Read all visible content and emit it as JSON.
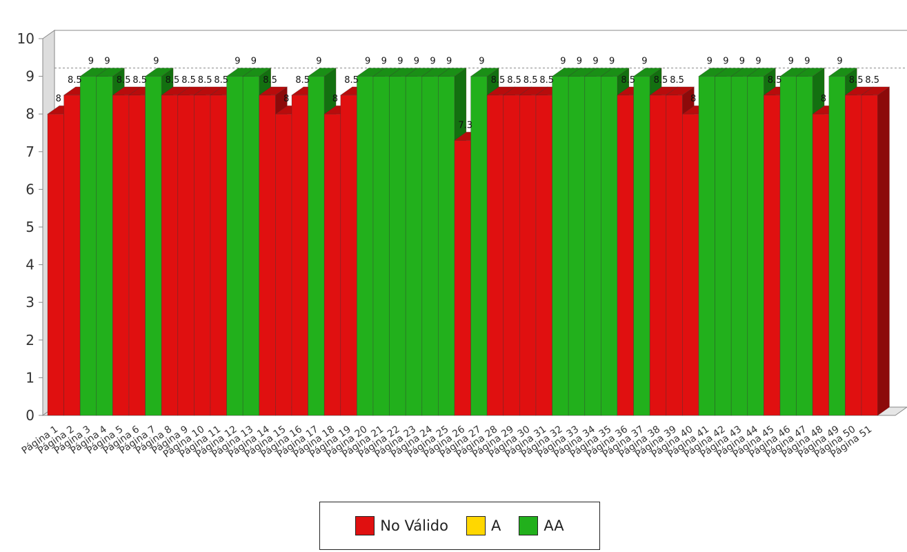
{
  "chart_data": {
    "type": "bar",
    "title": "",
    "xlabel": "",
    "ylabel": "",
    "ylim": [
      0,
      10
    ],
    "yticks": [
      0,
      1,
      2,
      3,
      4,
      5,
      6,
      7,
      8,
      9,
      10
    ],
    "three_d": true,
    "grid": "dashed lines at 9 and 10",
    "legend_position": "bottom",
    "categories": [
      "Página 1",
      "Página 2",
      "Página 3",
      "Página 4",
      "Página 5",
      "Página 6",
      "Página 7",
      "Página 8",
      "Página 9",
      "Página 10",
      "Página 11",
      "Página 12",
      "Página 13",
      "Página 14",
      "Página 15",
      "Página 16",
      "Página 17",
      "Página 18",
      "Página 19",
      "Página 20",
      "Página 21",
      "Página 22",
      "Página 23",
      "Página 24",
      "Página 25",
      "Página 26",
      "Página 27",
      "Página 28",
      "Página 29",
      "Página 30",
      "Página 31",
      "Página 32",
      "Página 33",
      "Página 34",
      "Página 35",
      "Página 36",
      "Página 37",
      "Página 38",
      "Página 39",
      "Página 40",
      "Página 41",
      "Página 42",
      "Página 43",
      "Página 44",
      "Página 45",
      "Página 46",
      "Página 47",
      "Página 48",
      "Página 49",
      "Página 50",
      "Página 51"
    ],
    "values": [
      8,
      8.5,
      9,
      9,
      8.5,
      8.5,
      9,
      8.5,
      8.5,
      8.5,
      8.5,
      9,
      9,
      8.5,
      8,
      8.5,
      9,
      8,
      8.5,
      9,
      9,
      9,
      9,
      9,
      9,
      7.3,
      9,
      8.5,
      8.5,
      8.5,
      8.5,
      9,
      9,
      9,
      9,
      8.5,
      9,
      8.5,
      8.5,
      8,
      9,
      9,
      9,
      9,
      8.5,
      9,
      9,
      8,
      9,
      8.5,
      8.5
    ],
    "levels": [
      "No Válido",
      "No Válido",
      "AA",
      "AA",
      "No Válido",
      "No Válido",
      "AA",
      "No Válido",
      "No Válido",
      "No Válido",
      "No Válido",
      "AA",
      "AA",
      "No Válido",
      "No Válido",
      "No Válido",
      "AA",
      "No Válido",
      "No Válido",
      "AA",
      "AA",
      "AA",
      "AA",
      "AA",
      "AA",
      "No Válido",
      "AA",
      "No Válido",
      "No Válido",
      "No Válido",
      "No Válido",
      "AA",
      "AA",
      "AA",
      "AA",
      "No Válido",
      "AA",
      "No Válido",
      "No Válido",
      "No Válido",
      "AA",
      "AA",
      "AA",
      "AA",
      "No Válido",
      "AA",
      "AA",
      "No Válido",
      "AA",
      "No Válido",
      "No Válido"
    ],
    "legend": [
      {
        "name": "No Válido",
        "color": "#e01010"
      },
      {
        "name": "A",
        "color": "#ffd700"
      },
      {
        "name": "AA",
        "color": "#22b01c"
      }
    ]
  },
  "colors": {
    "No Válido": {
      "front": "#e01010",
      "top": "#b80c0c",
      "side": "#8c0a0a"
    },
    "A": {
      "front": "#ffd700",
      "top": "#d4b200",
      "side": "#a88d00"
    },
    "AA": {
      "front": "#22b01c",
      "top": "#1a8f16",
      "side": "#137010"
    }
  }
}
